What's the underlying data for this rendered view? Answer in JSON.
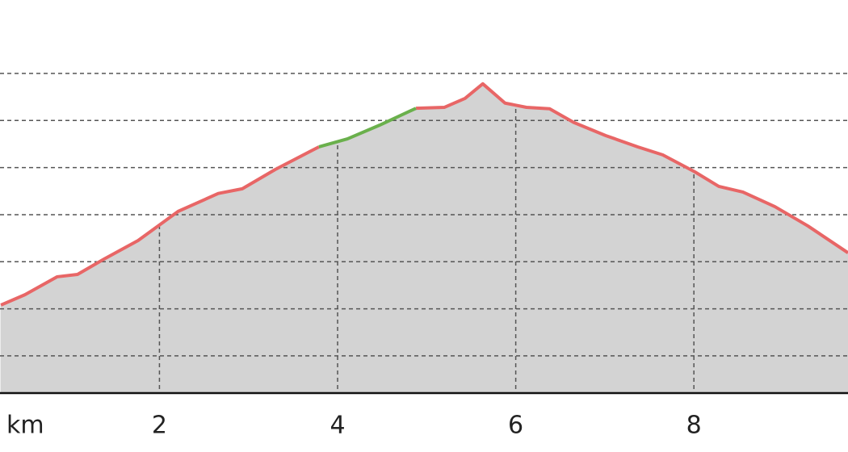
{
  "chart_data": {
    "type": "area-line",
    "x_label": "km",
    "x": [
      0.22,
      0.49,
      0.85,
      1.08,
      1.39,
      1.76,
      2.21,
      2.66,
      2.93,
      3.3,
      3.79,
      4.11,
      4.47,
      4.88,
      5.2,
      5.43,
      5.63,
      5.88,
      6.12,
      6.38,
      6.65,
      7.01,
      7.37,
      7.65,
      8.01,
      8.28,
      8.55,
      8.91,
      9.28,
      9.73
    ],
    "series": [
      {
        "color": "#e86666",
        "values": [
          508,
          530,
          568,
          573,
          607,
          645,
          707,
          745,
          755,
          796,
          844,
          null,
          null,
          926,
          928,
          947,
          978,
          937,
          928,
          925,
          896,
          868,
          844,
          827,
          791,
          760,
          748,
          717,
          676,
          619
        ]
      },
      {
        "color": "#6ab04c",
        "values": [
          null,
          null,
          null,
          null,
          null,
          null,
          null,
          null,
          null,
          null,
          844,
          861,
          890,
          926,
          null,
          null,
          null,
          null,
          null,
          null,
          null,
          null,
          null,
          null,
          null,
          null,
          null,
          null,
          null,
          null
        ]
      }
    ],
    "fill": "#d3d3d3",
    "xlim": [
      0.21,
      9.73
    ],
    "xticks": [
      2,
      4,
      6,
      8
    ],
    "ylim": [
      321,
      1156
    ],
    "yticks": [
      400,
      500,
      600,
      700,
      800,
      900,
      1000
    ],
    "grid": true
  }
}
